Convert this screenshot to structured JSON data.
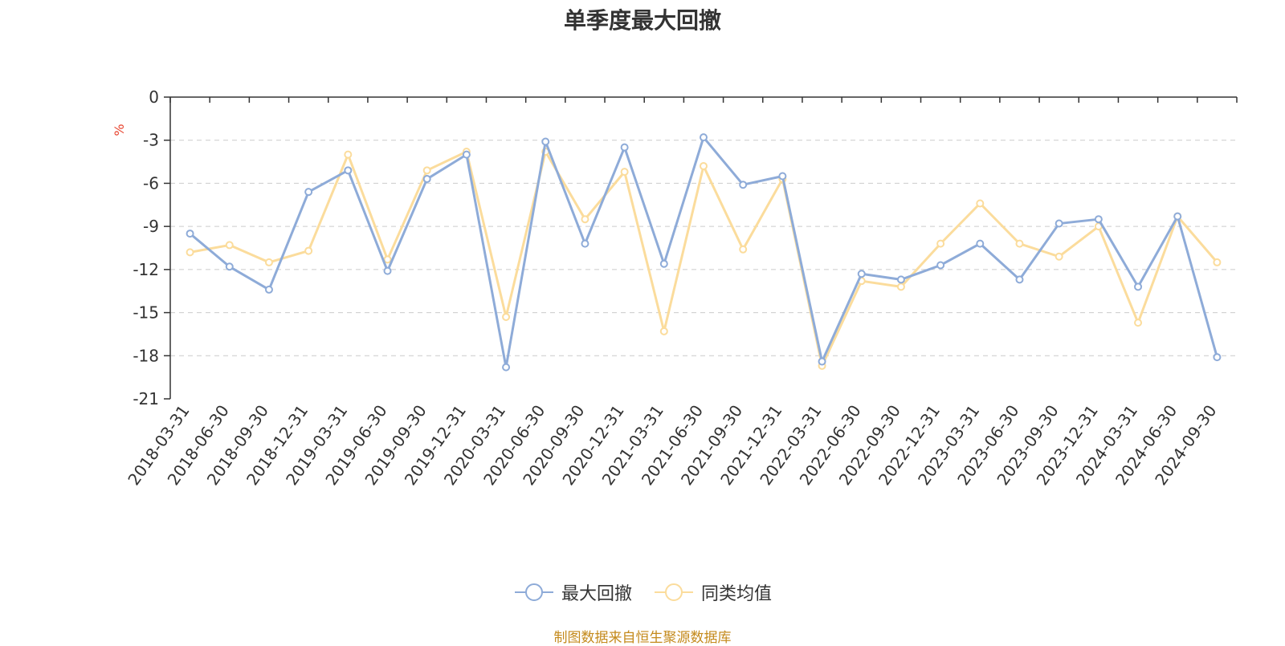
{
  "chart_data": {
    "type": "line",
    "title": "单季度最大回撤",
    "ylabel": "%",
    "ylim": [
      -21,
      0
    ],
    "yticks": [
      0,
      -3,
      -6,
      -9,
      -12,
      -15,
      -18,
      -21
    ],
    "grid": true,
    "legend_position": "bottom",
    "categories": [
      "2018-03-31",
      "2018-06-30",
      "2018-09-30",
      "2018-12-31",
      "2019-03-31",
      "2019-06-30",
      "2019-09-30",
      "2019-12-31",
      "2020-03-31",
      "2020-06-30",
      "2020-09-30",
      "2020-12-31",
      "2021-03-31",
      "2021-06-30",
      "2021-09-30",
      "2021-12-31",
      "2022-03-31",
      "2022-06-30",
      "2022-09-30",
      "2022-12-31",
      "2023-03-31",
      "2023-06-30",
      "2023-09-30",
      "2023-12-31",
      "2024-03-31",
      "2024-06-30",
      "2024-09-30"
    ],
    "series": [
      {
        "name": "最大回撤",
        "color": "#8eabd8",
        "values": [
          -9.5,
          -11.8,
          -13.4,
          -6.6,
          -5.1,
          -12.1,
          -5.7,
          -4.0,
          -18.8,
          -3.1,
          -10.2,
          -3.5,
          -11.6,
          -2.8,
          -6.1,
          -5.5,
          -18.4,
          -12.3,
          -12.7,
          -11.7,
          -10.2,
          -12.7,
          -8.8,
          -8.5,
          -13.2,
          -8.3,
          -18.1
        ]
      },
      {
        "name": "同类均值",
        "color": "#fbdc9c",
        "values": [
          -10.8,
          -10.3,
          -11.5,
          -10.7,
          -4.0,
          -11.3,
          -5.1,
          -3.8,
          -15.3,
          -3.8,
          -8.5,
          -5.2,
          -16.3,
          -4.8,
          -10.6,
          -5.7,
          -18.7,
          -12.8,
          -13.2,
          -10.2,
          -7.4,
          -10.2,
          -11.1,
          -9.0,
          -15.7,
          -8.3,
          -11.5
        ]
      }
    ]
  },
  "source_note": "制图数据来自恒生聚源数据库"
}
